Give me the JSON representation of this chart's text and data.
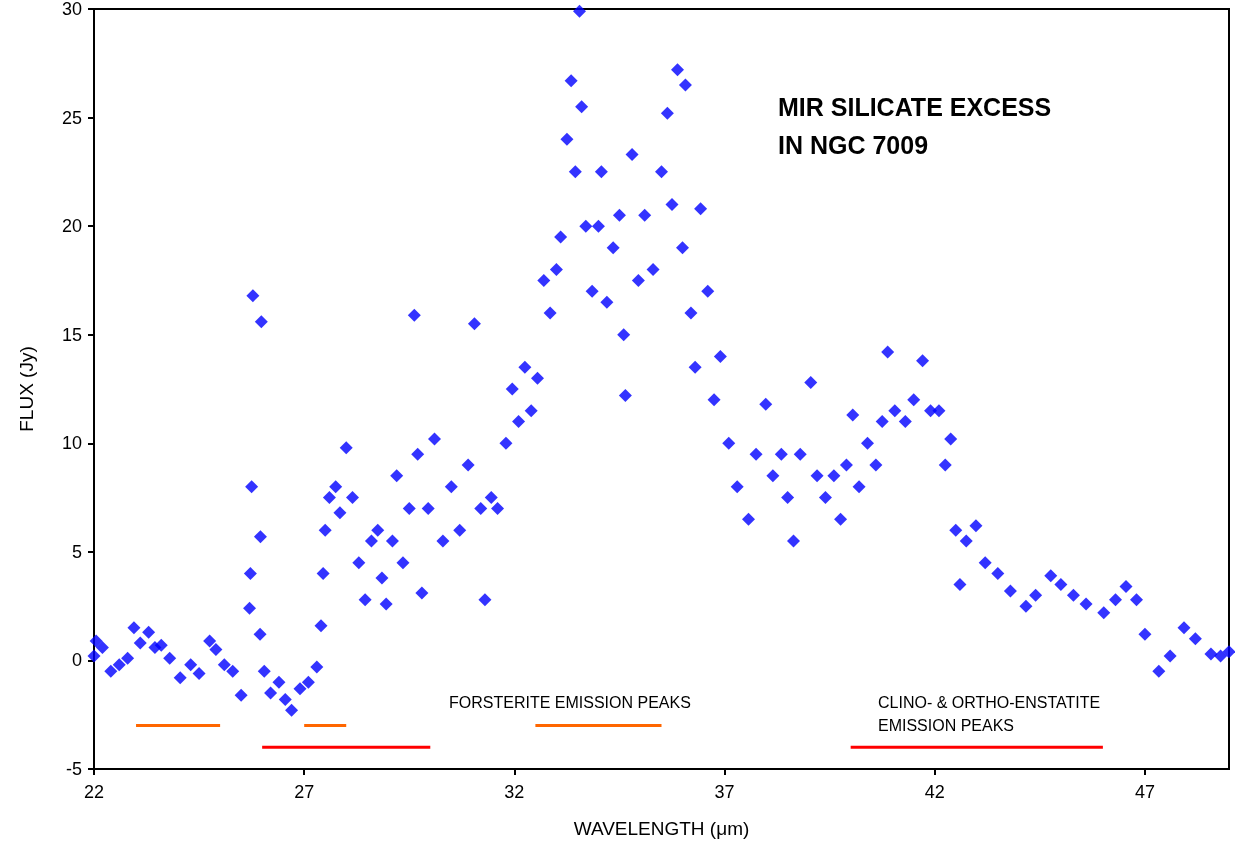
{
  "chart_data": {
    "type": "scatter",
    "title": "MIR SILICATE EXCESS\nIN NGC 7009",
    "xlabel": "WAVELENGTH (μm)",
    "ylabel": "FLUX (Jy)",
    "xlim": [
      22,
      49
    ],
    "xticks": [
      22,
      27,
      32,
      37,
      42,
      47
    ],
    "ylim": [
      -5,
      30
    ],
    "yticks": [
      -5,
      0,
      5,
      10,
      15,
      20,
      25,
      30
    ],
    "marker": "diamond",
    "annotations": [
      "FORSTERITE EMISSION PEAKS",
      "CLINO- & ORTHO-ENSTATITE\nEMISSION PEAKS"
    ],
    "series": [
      {
        "color": "#0000ff",
        "x": [
          22.0,
          22.05,
          22.2,
          22.4,
          22.6,
          22.8,
          22.95,
          23.1,
          23.3,
          23.45,
          23.6,
          23.8,
          24.05,
          24.3,
          24.5,
          24.75,
          24.9,
          25.1,
          25.3,
          25.5,
          25.7,
          25.72,
          25.75,
          25.78,
          25.98,
          25.96,
          25.95,
          26.05,
          26.2,
          26.4,
          26.55,
          26.7,
          26.9,
          27.1,
          27.3,
          27.4,
          27.45,
          27.5,
          27.6,
          27.75,
          27.85,
          28.0,
          28.15,
          28.3,
          28.45,
          28.6,
          28.75,
          28.85,
          28.95,
          29.1,
          29.2,
          29.35,
          29.5,
          29.62,
          29.7,
          29.8,
          29.95,
          30.1,
          30.3,
          30.5,
          30.7,
          30.9,
          31.05,
          31.2,
          31.3,
          31.45,
          31.6,
          31.8,
          31.95,
          32.1,
          32.25,
          32.4,
          32.55,
          32.7,
          32.85,
          33.0,
          33.1,
          33.25,
          33.35,
          33.45,
          33.55,
          33.6,
          33.7,
          33.85,
          34.0,
          34.07,
          34.2,
          34.35,
          34.5,
          34.6,
          34.64,
          34.8,
          34.95,
          35.1,
          35.3,
          35.5,
          35.64,
          35.75,
          35.88,
          36.0,
          36.07,
          36.2,
          36.3,
          36.43,
          36.6,
          36.75,
          36.9,
          37.1,
          37.3,
          37.57,
          37.75,
          37.98,
          38.15,
          38.35,
          38.5,
          38.64,
          38.8,
          39.05,
          39.2,
          39.4,
          39.6,
          39.76,
          39.9,
          40.05,
          40.2,
          40.4,
          40.6,
          40.75,
          40.88,
          41.05,
          41.3,
          41.5,
          41.71,
          41.9,
          42.1,
          42.25,
          42.38,
          42.5,
          42.6,
          42.75,
          42.98,
          43.2,
          43.5,
          43.8,
          44.17,
          44.4,
          44.76,
          45.0,
          45.3,
          45.6,
          46.02,
          46.3,
          46.55,
          46.8,
          47.0,
          47.33,
          47.6,
          47.93,
          48.2,
          48.57,
          48.8,
          49.0
        ],
        "values": [
          0.2,
          0.9,
          0.6,
          -0.5,
          -0.2,
          0.1,
          1.5,
          0.8,
          1.3,
          0.6,
          0.7,
          0.1,
          -0.8,
          -0.2,
          -0.6,
          0.9,
          0.5,
          -0.2,
          -0.5,
          -1.6,
          2.4,
          4.0,
          8.0,
          16.8,
          15.6,
          5.7,
          1.2,
          -0.5,
          -1.5,
          -1.0,
          -1.8,
          -2.3,
          -1.3,
          -1.0,
          -0.3,
          1.6,
          4.0,
          6.0,
          7.5,
          8.0,
          6.8,
          9.8,
          7.5,
          4.5,
          2.8,
          5.5,
          6.0,
          3.8,
          2.6,
          5.5,
          8.5,
          4.5,
          7.0,
          15.9,
          9.5,
          3.1,
          7.0,
          10.2,
          5.5,
          8.0,
          6.0,
          9.0,
          15.5,
          7.0,
          2.8,
          7.5,
          7.0,
          10.0,
          12.5,
          11.0,
          13.5,
          11.5,
          13.0,
          17.5,
          16.0,
          18.0,
          19.5,
          24.0,
          26.7,
          22.5,
          29.9,
          25.5,
          20.0,
          17.0,
          20.0,
          22.5,
          16.5,
          19.0,
          20.5,
          15.0,
          12.2,
          23.3,
          17.5,
          20.5,
          18.0,
          22.5,
          25.2,
          21.0,
          27.2,
          19.0,
          26.5,
          16.0,
          13.5,
          20.8,
          17.0,
          12.0,
          14.0,
          10.0,
          8.0,
          6.5,
          9.5,
          11.8,
          8.5,
          9.5,
          7.5,
          5.5,
          9.5,
          12.8,
          8.5,
          7.5,
          8.5,
          6.5,
          9.0,
          11.3,
          8.0,
          10.0,
          9.0,
          11.0,
          14.2,
          11.5,
          11.0,
          12.0,
          13.8,
          11.5,
          11.5,
          9.0,
          10.2,
          6.0,
          3.5,
          5.5,
          6.2,
          4.5,
          4.0,
          3.2,
          2.5,
          3.0,
          3.9,
          3.5,
          3.0,
          2.6,
          2.2,
          2.8,
          3.4,
          2.8,
          1.2,
          -0.5,
          0.2,
          1.5,
          1.0,
          0.3,
          0.2,
          0.4
        ]
      },
      {
        "type": "line",
        "color": "#ff6600",
        "marker": "none",
        "x": [
          23.0,
          25.0
        ],
        "values": [
          -3,
          -3
        ]
      },
      {
        "type": "line",
        "color": "#ff6600",
        "marker": "none",
        "x": [
          27.0,
          28.0
        ],
        "values": [
          -3,
          -3
        ]
      },
      {
        "type": "line",
        "color": "#ff6600",
        "marker": "none",
        "x": [
          32.5,
          35.5
        ],
        "values": [
          -3,
          -3
        ]
      },
      {
        "type": "line",
        "color": "#ff0000",
        "marker": "none",
        "x": [
          26.0,
          30.0
        ],
        "values": [
          -4,
          -4
        ]
      },
      {
        "type": "line",
        "color": "#ff0000",
        "marker": "none",
        "x": [
          40.0,
          46.0
        ],
        "values": [
          -4,
          -4
        ]
      }
    ]
  }
}
